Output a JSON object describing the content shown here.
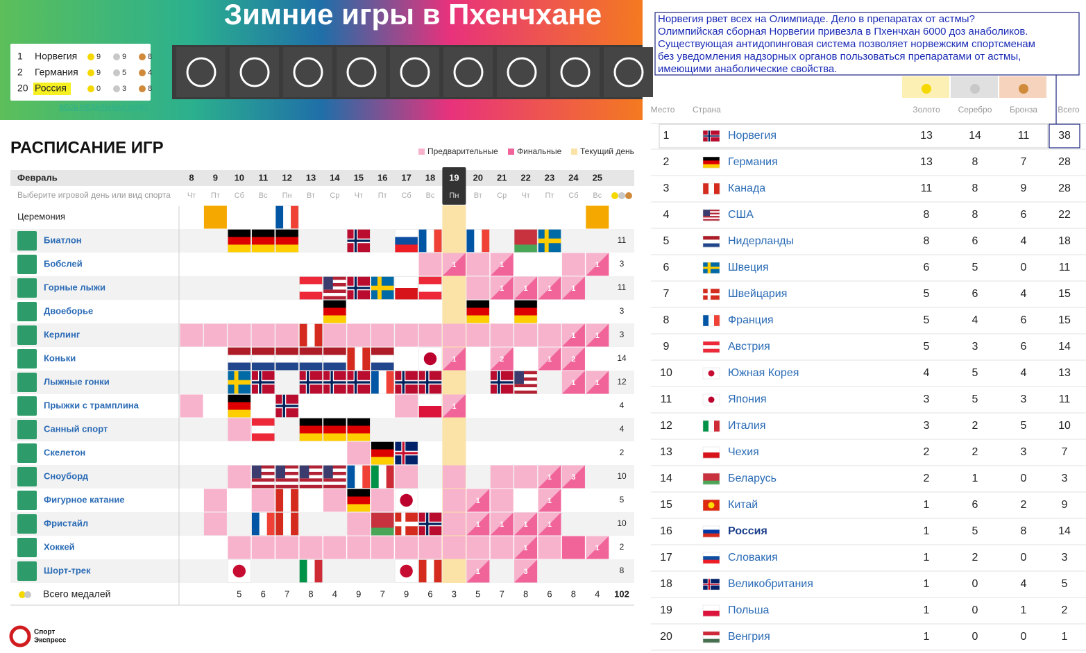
{
  "header": {
    "title": "Зимние игры в Пхенчхане",
    "link": "ВЕСЬ МЕДАЛЬНЫЙ ЗАЧЕТ",
    "top": [
      {
        "place": 1,
        "country": "Норвегия",
        "gold": 9,
        "silver": 9,
        "bronze": 8
      },
      {
        "place": 2,
        "country": "Германия",
        "gold": 9,
        "silver": 5,
        "bronze": 4
      },
      {
        "place": 20,
        "country": "Россия",
        "gold": 0,
        "silver": 3,
        "bronze": 8
      }
    ]
  },
  "schedule": {
    "title": "РАСПИСАНИЕ ИГР",
    "legend": [
      "Предварительные",
      "Финальные",
      "Текущий день"
    ],
    "month": "Февраль",
    "hint": "Выберите игровой день или вид спорта",
    "days": [
      8,
      9,
      10,
      11,
      12,
      13,
      14,
      15,
      16,
      17,
      18,
      19,
      20,
      21,
      22,
      23,
      24,
      25
    ],
    "weekdays": [
      "Чт",
      "Пт",
      "Сб",
      "Вс",
      "Пн",
      "Вт",
      "Ср",
      "Чт",
      "Пт",
      "Сб",
      "Вс",
      "Пн",
      "Вт",
      "Ср",
      "Чт",
      "Пт",
      "Сб",
      "Вс"
    ],
    "current_day": 19,
    "ceremony": {
      "name": "Церемония",
      "cells": [
        "",
        "c",
        "",
        "",
        "FRA",
        "",
        "",
        "",
        "",
        "",
        "",
        "",
        "",
        "",
        "",
        "",
        "",
        "c"
      ]
    },
    "sports": [
      {
        "name": "Биатлон",
        "medals": 11,
        "cells": [
          "",
          "",
          "GER",
          "GER",
          "GER",
          "",
          "",
          "NOR",
          "",
          "SVK",
          "FRA",
          "",
          "FRA",
          "",
          "BLR",
          "SWE",
          "",
          ""
        ]
      },
      {
        "name": "Бобслей",
        "medals": 3,
        "cells": [
          "",
          "",
          "",
          "",
          "",
          "",
          "",
          "",
          "",
          "",
          "p",
          "1",
          "p",
          "1",
          "",
          "",
          "p",
          "1"
        ]
      },
      {
        "name": "Горные лыжи",
        "medals": 11,
        "cells": [
          "",
          "",
          "",
          "",
          "",
          "AUT",
          "USA",
          "NOR",
          "SWE",
          "CZE",
          "AUT",
          "",
          "p",
          "1",
          "1",
          "1",
          "1",
          ""
        ]
      },
      {
        "name": "Двоеборье",
        "medals": 3,
        "cells": [
          "",
          "",
          "",
          "",
          "",
          "",
          "GER",
          "",
          "",
          "",
          "",
          "",
          "GER",
          "",
          "GER",
          "",
          "",
          ""
        ]
      },
      {
        "name": "Керлинг",
        "medals": 3,
        "cells": [
          "p",
          "p",
          "p",
          "p",
          "p",
          "CAN",
          "p",
          "p",
          "p",
          "p",
          "p",
          "p",
          "p",
          "p",
          "p",
          "p",
          "1",
          "1"
        ]
      },
      {
        "name": "Коньки",
        "medals": 14,
        "cells": [
          "",
          "",
          "NED",
          "NED",
          "NED",
          "NED",
          "NED",
          "CAN",
          "NED",
          "",
          "JPN",
          "1",
          "",
          "2",
          "",
          "1",
          "2",
          ""
        ]
      },
      {
        "name": "Лыжные гонки",
        "medals": 12,
        "cells": [
          "",
          "",
          "SWE",
          "NOR",
          "",
          "NOR",
          "NOR",
          "NOR",
          "FRA",
          "NOR",
          "NOR",
          "",
          "",
          "NOR",
          "USA",
          "",
          "1",
          "1"
        ]
      },
      {
        "name": "Прыжки с трамплина",
        "medals": 4,
        "cells": [
          "p",
          "",
          "GER",
          "",
          "NOR",
          "",
          "",
          "",
          "",
          "p",
          "POL",
          "1",
          "",
          "",
          "",
          "",
          "",
          ""
        ]
      },
      {
        "name": "Санный спорт",
        "medals": 4,
        "cells": [
          "",
          "",
          "p",
          "AUT",
          "",
          "GER",
          "GER",
          "GER",
          "",
          "",
          "",
          "",
          "",
          "",
          "",
          "",
          "",
          ""
        ]
      },
      {
        "name": "Скелетон",
        "medals": 2,
        "cells": [
          "",
          "",
          "",
          "",
          "",
          "",
          "",
          "p",
          "GER",
          "GBR",
          "",
          "",
          "",
          "",
          "",
          "",
          "",
          ""
        ]
      },
      {
        "name": "Сноуборд",
        "medals": 10,
        "cells": [
          "",
          "",
          "p",
          "USA",
          "USA",
          "USA",
          "USA",
          "FRA",
          "ITA",
          "p",
          "",
          "p",
          "",
          "p",
          "p",
          "1",
          "3",
          ""
        ]
      },
      {
        "name": "Фигурное катание",
        "medals": 5,
        "cells": [
          "",
          "p",
          "",
          "p",
          "CAN",
          "",
          "p",
          "GER",
          "p",
          "JPN",
          "",
          "p",
          "1",
          "p",
          "",
          "1",
          "",
          ""
        ]
      },
      {
        "name": "Фристайл",
        "medals": 10,
        "cells": [
          "",
          "p",
          "",
          "FRA",
          "CAN",
          "",
          "",
          "p",
          "BLR",
          "SUI",
          "NOR",
          "p",
          "1",
          "1",
          "1",
          "1",
          "",
          ""
        ]
      },
      {
        "name": "Хоккей",
        "medals": 2,
        "cells": [
          "",
          "",
          "p",
          "p",
          "p",
          "p",
          "p",
          "p",
          "p",
          "p",
          "p",
          "p",
          "p",
          "p",
          "1",
          "p",
          "f",
          "1"
        ]
      },
      {
        "name": "Шорт-трек",
        "medals": 8,
        "cells": [
          "",
          "",
          "KOR",
          "",
          "",
          "ITA",
          "",
          "",
          "",
          "KOR",
          "CAN",
          "",
          "1",
          "",
          "3",
          "",
          "",
          ""
        ]
      }
    ],
    "total_label": "Всего медалей",
    "totals": [
      null,
      null,
      5,
      6,
      7,
      8,
      4,
      9,
      7,
      9,
      6,
      3,
      5,
      7,
      8,
      6,
      8,
      4
    ],
    "grand_total": 102
  },
  "footer": {
    "logo": [
      "Спорт",
      "Экспресс"
    ]
  },
  "annotation": {
    "lines": [
      "Норвегия рвет всех на Олимпиаде. Дело в препаратах от астмы?",
      "Олимпийская сборная Норвегии привезла в Пхенчхан 6000 доз анаболиков.",
      "Существующая антидопинговая система позволяет норвежским спортсменам",
      "без уведомления надзорных органов пользоваться препаратами от астмы,",
      "имеющими анаболические свойства."
    ]
  },
  "medal_table": {
    "columns": [
      "Место",
      "Страна",
      "Золото",
      "Серебро",
      "Бронза",
      "Всего"
    ],
    "rows": [
      {
        "place": 1,
        "country": "Норвегия",
        "flag": "NOR",
        "gold": 13,
        "silver": 14,
        "bronze": 11,
        "total": 38
      },
      {
        "place": 2,
        "country": "Германия",
        "flag": "GER",
        "gold": 13,
        "silver": 8,
        "bronze": 7,
        "total": 28
      },
      {
        "place": 3,
        "country": "Канада",
        "flag": "CAN",
        "gold": 11,
        "silver": 8,
        "bronze": 9,
        "total": 28
      },
      {
        "place": 4,
        "country": "США",
        "flag": "USA",
        "gold": 8,
        "silver": 8,
        "bronze": 6,
        "total": 22
      },
      {
        "place": 5,
        "country": "Нидерланды",
        "flag": "NED",
        "gold": 8,
        "silver": 6,
        "bronze": 4,
        "total": 18
      },
      {
        "place": 6,
        "country": "Швеция",
        "flag": "SWE",
        "gold": 6,
        "silver": 5,
        "bronze": 0,
        "total": 11
      },
      {
        "place": 7,
        "country": "Швейцария",
        "flag": "SUI",
        "gold": 5,
        "silver": 6,
        "bronze": 4,
        "total": 15
      },
      {
        "place": 8,
        "country": "Франция",
        "flag": "FRA",
        "gold": 5,
        "silver": 4,
        "bronze": 6,
        "total": 15
      },
      {
        "place": 9,
        "country": "Австрия",
        "flag": "AUT",
        "gold": 5,
        "silver": 3,
        "bronze": 6,
        "total": 14
      },
      {
        "place": 10,
        "country": "Южная Корея",
        "flag": "KOR",
        "gold": 4,
        "silver": 5,
        "bronze": 4,
        "total": 13
      },
      {
        "place": 11,
        "country": "Япония",
        "flag": "JPN",
        "gold": 3,
        "silver": 5,
        "bronze": 3,
        "total": 11
      },
      {
        "place": 12,
        "country": "Италия",
        "flag": "ITA",
        "gold": 3,
        "silver": 2,
        "bronze": 5,
        "total": 10
      },
      {
        "place": 13,
        "country": "Чехия",
        "flag": "CZE",
        "gold": 2,
        "silver": 2,
        "bronze": 3,
        "total": 7
      },
      {
        "place": 14,
        "country": "Беларусь",
        "flag": "BLR",
        "gold": 2,
        "silver": 1,
        "bronze": 0,
        "total": 3
      },
      {
        "place": 15,
        "country": "Китай",
        "flag": "CHN",
        "gold": 1,
        "silver": 6,
        "bronze": 2,
        "total": 9
      },
      {
        "place": 16,
        "country": "Россия",
        "flag": "RUS",
        "gold": 1,
        "silver": 5,
        "bronze": 8,
        "total": 14,
        "bold": true
      },
      {
        "place": 17,
        "country": "Словакия",
        "flag": "SVK",
        "gold": 1,
        "silver": 2,
        "bronze": 0,
        "total": 3
      },
      {
        "place": 18,
        "country": "Великобритания",
        "flag": "GBR",
        "gold": 1,
        "silver": 0,
        "bronze": 4,
        "total": 5
      },
      {
        "place": 19,
        "country": "Польша",
        "flag": "POL",
        "gold": 1,
        "silver": 0,
        "bronze": 1,
        "total": 2
      },
      {
        "place": 20,
        "country": "Венгрия",
        "flag": "HUN",
        "gold": 1,
        "silver": 0,
        "bronze": 0,
        "total": 1
      }
    ]
  }
}
